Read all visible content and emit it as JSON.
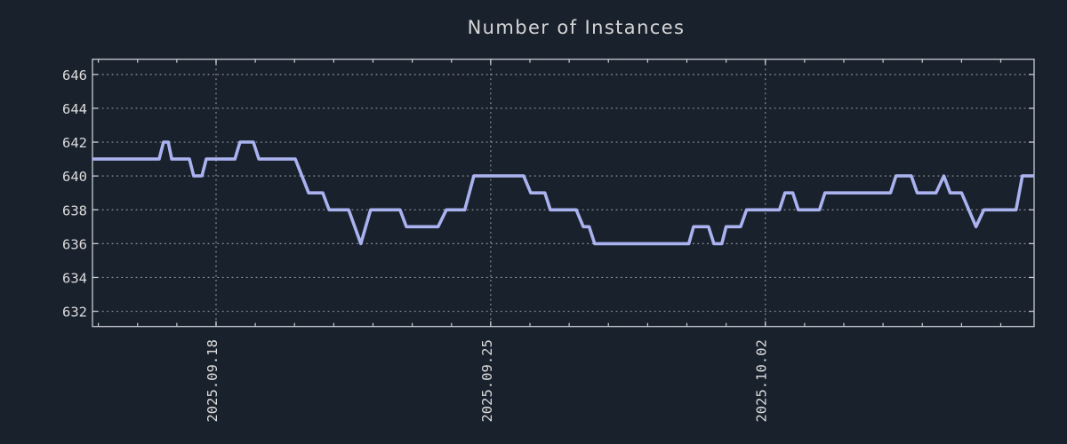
{
  "colors": {
    "background": "#19212d",
    "plot_border": "#c8ccd2",
    "grid": "#8d939b",
    "line": "#aab2ef",
    "title_text": "#d6d6d6",
    "tick_text": "#dcdcdc"
  },
  "chart_data": {
    "type": "line",
    "title": "Number of Instances",
    "xlabel": "",
    "ylabel": "",
    "legend": "none",
    "grid": "dotted horizontal at every y tick, dotted vertical at labeled dates",
    "x_unit": "days relative to 2025.09.18",
    "xlim": [
      -3.15,
      20.85
    ],
    "ylim": [
      631.1,
      646.9
    ],
    "y_ticks": [
      632,
      634,
      636,
      638,
      640,
      642,
      644,
      646
    ],
    "x_major_ticks": [
      {
        "day": 0,
        "label": "2025.09.18"
      },
      {
        "day": 7,
        "label": "2025.09.25"
      },
      {
        "day": 14,
        "label": "2025.10.02"
      }
    ],
    "x_minor_tick_days": [
      -3,
      -2,
      -1,
      0,
      1,
      2,
      3,
      4,
      5,
      6,
      7,
      8,
      9,
      10,
      11,
      12,
      13,
      14,
      15,
      16,
      17,
      18,
      19,
      20
    ],
    "series": [
      {
        "name": "instances",
        "color": "#aab2ef",
        "points": [
          [
            -3.15,
            641
          ],
          [
            -1.45,
            641
          ],
          [
            -1.34,
            642
          ],
          [
            -1.22,
            642
          ],
          [
            -1.13,
            641
          ],
          [
            -0.68,
            641
          ],
          [
            -0.57,
            640
          ],
          [
            -0.36,
            640
          ],
          [
            -0.25,
            641
          ],
          [
            0.48,
            641
          ],
          [
            0.61,
            642
          ],
          [
            0.95,
            642
          ],
          [
            1.09,
            641
          ],
          [
            2.02,
            641
          ],
          [
            2.36,
            639
          ],
          [
            2.72,
            639
          ],
          [
            2.88,
            638
          ],
          [
            3.38,
            638
          ],
          [
            3.69,
            636
          ],
          [
            3.94,
            638
          ],
          [
            4.69,
            638
          ],
          [
            4.85,
            637
          ],
          [
            5.66,
            637
          ],
          [
            5.87,
            638
          ],
          [
            6.34,
            638
          ],
          [
            6.57,
            640
          ],
          [
            7.84,
            640
          ],
          [
            8.02,
            639
          ],
          [
            8.38,
            639
          ],
          [
            8.52,
            638
          ],
          [
            9.18,
            638
          ],
          [
            9.36,
            637
          ],
          [
            9.51,
            637
          ],
          [
            9.65,
            636
          ],
          [
            12.05,
            636
          ],
          [
            12.17,
            637
          ],
          [
            12.55,
            637
          ],
          [
            12.69,
            636
          ],
          [
            12.89,
            636
          ],
          [
            13.0,
            637
          ],
          [
            13.37,
            637
          ],
          [
            13.52,
            638
          ],
          [
            14.36,
            638
          ],
          [
            14.5,
            639
          ],
          [
            14.7,
            639
          ],
          [
            14.84,
            638
          ],
          [
            15.38,
            638
          ],
          [
            15.52,
            639
          ],
          [
            17.19,
            639
          ],
          [
            17.33,
            640
          ],
          [
            17.72,
            640
          ],
          [
            17.87,
            639
          ],
          [
            18.35,
            639
          ],
          [
            18.55,
            640
          ],
          [
            18.71,
            639
          ],
          [
            19.0,
            639
          ],
          [
            19.37,
            637
          ],
          [
            19.57,
            638
          ],
          [
            20.39,
            638
          ],
          [
            20.55,
            640
          ],
          [
            20.85,
            640
          ]
        ]
      }
    ]
  }
}
